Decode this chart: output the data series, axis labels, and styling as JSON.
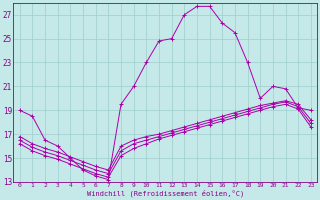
{
  "bg_color": "#c5e8e8",
  "grid_color": "#9ecece",
  "line_color": "#aa00aa",
  "xlim": [
    -0.5,
    23.5
  ],
  "ylim": [
    13,
    28
  ],
  "xticks": [
    0,
    1,
    2,
    3,
    4,
    5,
    6,
    7,
    8,
    9,
    10,
    11,
    12,
    13,
    14,
    15,
    16,
    17,
    18,
    19,
    20,
    21,
    22,
    23
  ],
  "yticks": [
    13,
    15,
    17,
    19,
    21,
    23,
    25,
    27
  ],
  "xlabel": "Windchill (Refroidissement éolien,°C)",
  "line1_x": [
    0,
    1,
    2,
    3,
    4,
    5,
    6,
    7,
    8,
    9,
    10,
    11,
    12,
    13,
    14,
    15,
    16,
    17,
    18,
    19,
    20,
    21,
    22,
    23
  ],
  "line1_y": [
    19.0,
    18.5,
    16.5,
    16.0,
    15.0,
    14.0,
    13.5,
    13.2,
    19.5,
    21.0,
    23.0,
    24.8,
    25.0,
    27.0,
    27.7,
    27.7,
    26.3,
    25.5,
    23.0,
    20.0,
    21.0,
    20.8,
    19.2,
    19.0
  ],
  "line2_x": [
    0,
    1,
    2,
    3,
    4,
    5,
    6,
    7,
    8,
    9,
    10,
    11,
    12,
    13,
    14,
    15,
    16,
    17,
    18,
    19,
    20,
    21,
    22,
    23
  ],
  "line2_y": [
    16.8,
    16.2,
    15.8,
    15.5,
    15.1,
    14.7,
    14.3,
    14.0,
    16.0,
    16.5,
    16.8,
    17.0,
    17.3,
    17.6,
    17.9,
    18.2,
    18.5,
    18.8,
    19.1,
    19.4,
    19.6,
    19.8,
    19.5,
    18.2
  ],
  "line3_x": [
    0,
    1,
    2,
    3,
    4,
    5,
    6,
    7,
    8,
    9,
    10,
    11,
    12,
    13,
    14,
    15,
    16,
    17,
    18,
    19,
    20,
    21,
    22,
    23
  ],
  "line3_y": [
    16.5,
    15.9,
    15.5,
    15.2,
    14.8,
    14.4,
    14.0,
    13.7,
    15.6,
    16.2,
    16.5,
    16.8,
    17.1,
    17.4,
    17.7,
    18.0,
    18.3,
    18.6,
    18.9,
    19.2,
    19.5,
    19.7,
    19.3,
    17.9
  ],
  "line4_x": [
    0,
    1,
    2,
    3,
    4,
    5,
    6,
    7,
    8,
    9,
    10,
    11,
    12,
    13,
    14,
    15,
    16,
    17,
    18,
    19,
    20,
    21,
    22,
    23
  ],
  "line4_y": [
    16.2,
    15.6,
    15.2,
    14.9,
    14.5,
    14.1,
    13.7,
    13.4,
    15.2,
    15.8,
    16.2,
    16.6,
    16.9,
    17.2,
    17.5,
    17.8,
    18.1,
    18.4,
    18.7,
    19.0,
    19.3,
    19.5,
    19.1,
    17.6
  ]
}
